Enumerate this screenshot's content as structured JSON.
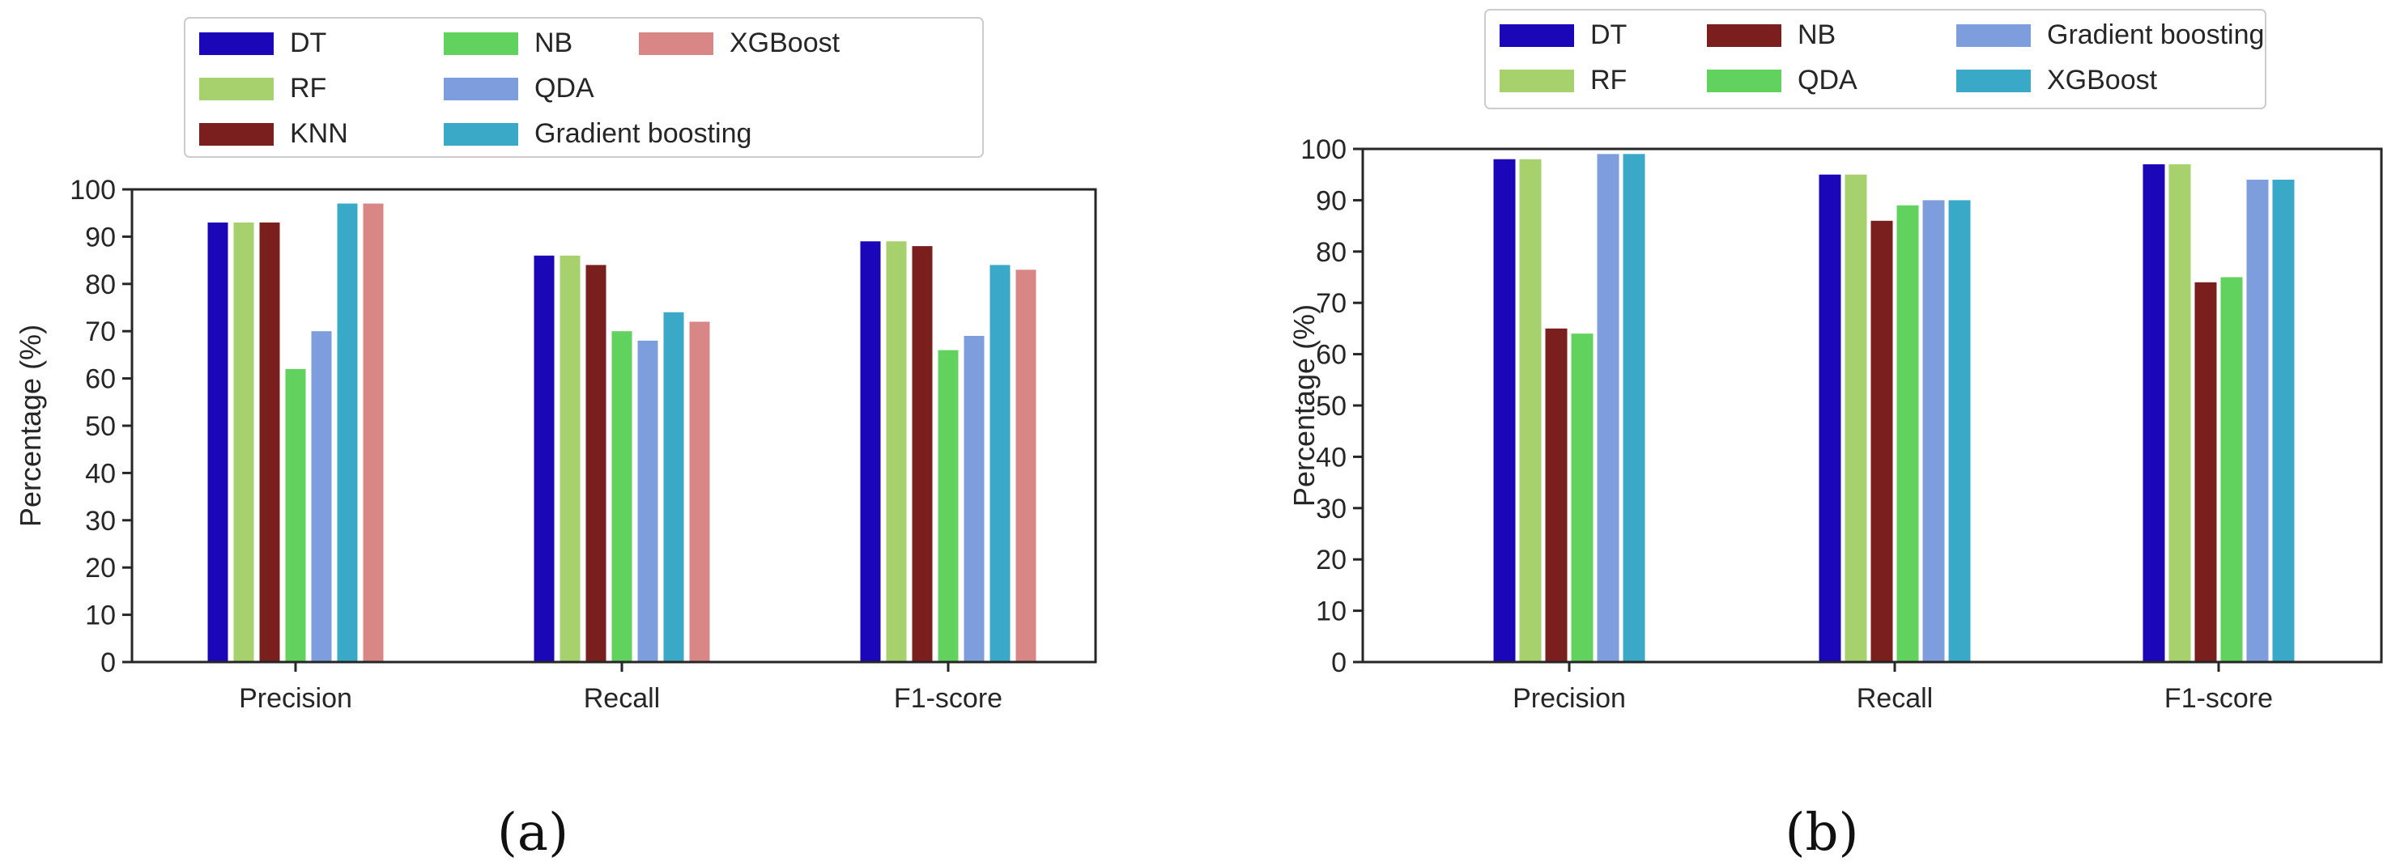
{
  "chart_data": [
    {
      "type": "bar",
      "panel": "a",
      "caption": "(a)",
      "title": "",
      "xlabel": "",
      "ylabel": "Percentage (%)",
      "ylim": [
        0,
        100
      ],
      "yticks": [
        "0",
        "10",
        "20",
        "30",
        "40",
        "50",
        "60",
        "70",
        "80",
        "90",
        "100"
      ],
      "grid": false,
      "legend_position": "top",
      "categories": [
        "Precision",
        "Recall",
        "F1-score"
      ],
      "series": [
        {
          "name": "DT",
          "color": "#1b06b8",
          "values": [
            93,
            86,
            89
          ]
        },
        {
          "name": "RF",
          "color": "#a7d16c",
          "values": [
            93,
            86,
            89
          ]
        },
        {
          "name": "KNN",
          "color": "#7b1e1e",
          "values": [
            93,
            84,
            88
          ]
        },
        {
          "name": "NB",
          "color": "#62d25f",
          "values": [
            62,
            70,
            66
          ]
        },
        {
          "name": "QDA",
          "color": "#7e9ddd",
          "values": [
            70,
            68,
            69
          ]
        },
        {
          "name": "Gradient boosting",
          "color": "#3aa9c8",
          "values": [
            97,
            74,
            84
          ]
        },
        {
          "name": "XGBoost",
          "color": "#d88686",
          "values": [
            97,
            72,
            83
          ]
        }
      ]
    },
    {
      "type": "bar",
      "panel": "b",
      "caption": "(b)",
      "title": "",
      "xlabel": "",
      "ylabel": "Percentage (%)",
      "ylim": [
        0,
        100
      ],
      "yticks": [
        "0",
        "10",
        "20",
        "30",
        "40",
        "50",
        "60",
        "70",
        "80",
        "90",
        "100"
      ],
      "grid": false,
      "legend_position": "top",
      "categories": [
        "Precision",
        "Recall",
        "F1-score"
      ],
      "series": [
        {
          "name": "DT",
          "color": "#1b06b8",
          "values": [
            98,
            95,
            97
          ]
        },
        {
          "name": "RF",
          "color": "#a7d16c",
          "values": [
            98,
            95,
            97
          ]
        },
        {
          "name": "NB",
          "color": "#7b1e1e",
          "values": [
            65,
            86,
            74
          ]
        },
        {
          "name": "QDA",
          "color": "#62d25f",
          "values": [
            64,
            89,
            75
          ]
        },
        {
          "name": "Gradient boosting",
          "color": "#7e9ddd",
          "values": [
            99,
            90,
            94
          ]
        },
        {
          "name": "XGBoost",
          "color": "#3aa9c8",
          "values": [
            99,
            90,
            94
          ]
        }
      ]
    }
  ]
}
